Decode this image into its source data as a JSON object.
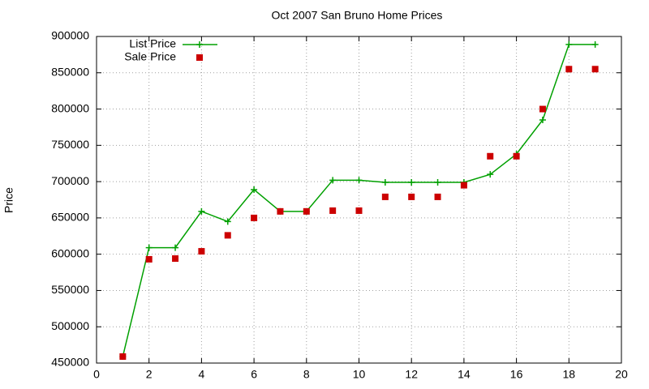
{
  "chart_data": {
    "type": "line",
    "title": "Oct 2007 San Bruno Home Prices",
    "y_label": "Price",
    "x": [
      1,
      2,
      3,
      4,
      5,
      6,
      7,
      8,
      9,
      10,
      11,
      12,
      13,
      14,
      15,
      16,
      17,
      18,
      19
    ],
    "series": [
      {
        "name": "List Price",
        "color": "#00a000",
        "style": "linespoints",
        "values": [
          459000,
          609000,
          609000,
          659000,
          645000,
          689000,
          659000,
          659000,
          702000,
          702000,
          699000,
          699000,
          699000,
          699000,
          710000,
          738000,
          785000,
          889000,
          889000
        ]
      },
      {
        "name": "Sale Price",
        "color": "#cc0000",
        "style": "points",
        "values": [
          459000,
          593000,
          594000,
          604000,
          626000,
          650000,
          659000,
          659000,
          660000,
          660000,
          679000,
          679000,
          679000,
          695000,
          735000,
          735000,
          800000,
          855000,
          855000
        ]
      }
    ],
    "xlim": [
      0,
      20
    ],
    "xticks": [
      0,
      2,
      4,
      6,
      8,
      10,
      12,
      14,
      16,
      18,
      20
    ],
    "ylim": [
      450000,
      900000
    ],
    "yticks": [
      450000,
      500000,
      550000,
      600000,
      650000,
      700000,
      750000,
      800000,
      850000,
      900000
    ],
    "grid": true,
    "legend": "top-left"
  }
}
